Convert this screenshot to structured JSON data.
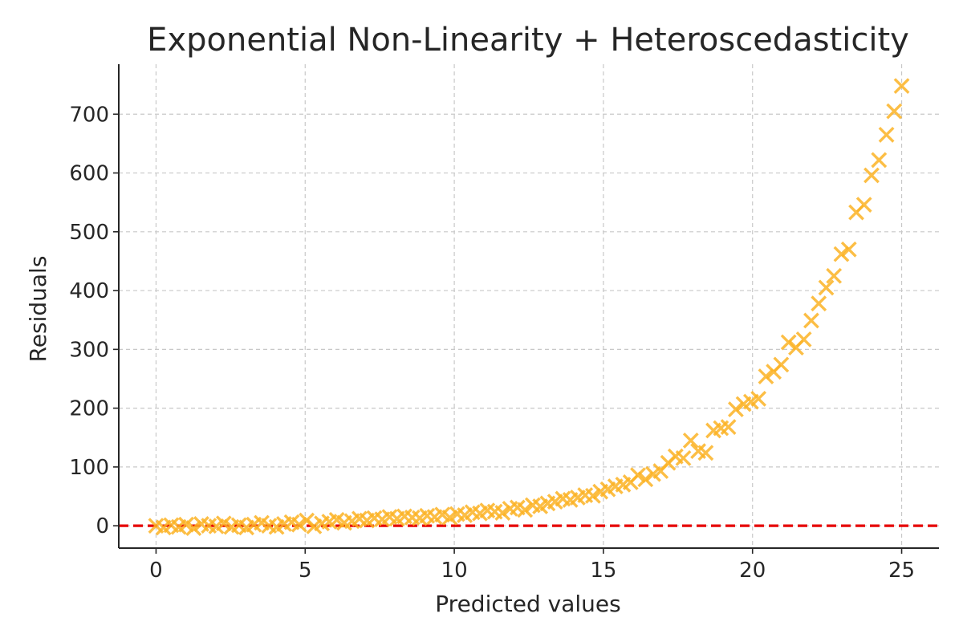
{
  "chart_data": {
    "type": "scatter",
    "title": "Exponential Non-Linearity + Heteroscedasticity",
    "xlabel": "Predicted values",
    "ylabel": "Residuals",
    "xlim": [
      -1.25,
      26.25
    ],
    "ylim": [
      -38,
      785
    ],
    "xticks": [
      0,
      5,
      10,
      15,
      20,
      25
    ],
    "yticks": [
      0,
      100,
      200,
      300,
      400,
      500,
      600,
      700
    ],
    "grid": true,
    "marker": "x",
    "marker_color": "#FBB325",
    "reference_line": {
      "y": 0,
      "color": "#E60000",
      "style": "dashed"
    },
    "points": {
      "x": [
        0.0,
        0.25,
        0.51,
        0.76,
        1.01,
        1.26,
        1.52,
        1.77,
        2.02,
        2.27,
        2.53,
        2.78,
        3.03,
        3.28,
        3.54,
        3.79,
        4.04,
        4.29,
        4.55,
        4.8,
        5.05,
        5.3,
        5.56,
        5.81,
        6.06,
        6.31,
        6.57,
        6.82,
        7.07,
        7.32,
        7.58,
        7.83,
        8.08,
        8.33,
        8.59,
        8.84,
        9.09,
        9.34,
        9.6,
        9.85,
        10.1,
        10.35,
        10.61,
        10.86,
        11.11,
        11.36,
        11.62,
        11.87,
        12.12,
        12.37,
        12.63,
        12.88,
        13.13,
        13.38,
        13.64,
        13.89,
        14.14,
        14.39,
        14.65,
        14.9,
        15.15,
        15.4,
        15.66,
        15.91,
        16.16,
        16.41,
        16.67,
        16.92,
        17.17,
        17.42,
        17.68,
        17.93,
        18.18,
        18.43,
        18.69,
        18.94,
        19.19,
        19.44,
        19.7,
        19.95,
        20.2,
        20.45,
        20.71,
        20.96,
        21.21,
        21.46,
        21.72,
        21.97,
        22.22,
        22.47,
        22.73,
        22.98,
        23.23,
        23.48,
        23.74,
        23.99,
        24.24,
        24.49,
        24.75,
        25.0
      ],
      "y": [
        0,
        -3,
        1,
        -2,
        2,
        -4,
        3,
        0,
        -1,
        4,
        -2,
        1,
        -3,
        2,
        5,
        0,
        -2,
        3,
        6,
        2,
        9,
        -1,
        4,
        7,
        10,
        5,
        8,
        12,
        9,
        13,
        11,
        15,
        12,
        16,
        14,
        13,
        17,
        15,
        19,
        14,
        20,
        18,
        23,
        21,
        26,
        24,
        22,
        29,
        31,
        27,
        35,
        33,
        38,
        41,
        46,
        44,
        48,
        52,
        51,
        58,
        62,
        67,
        70,
        74,
        86,
        79,
        88,
        93,
        107,
        118,
        115,
        145,
        127,
        124,
        162,
        166,
        168,
        198,
        207,
        211,
        216,
        254,
        262,
        274,
        312,
        303,
        317,
        349,
        378,
        405,
        425,
        462,
        470,
        533,
        546,
        596,
        622,
        665,
        705,
        748
      ]
    }
  }
}
